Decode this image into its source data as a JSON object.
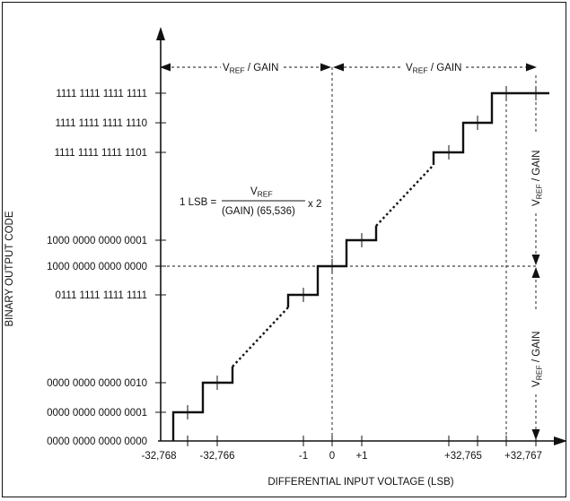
{
  "diagram": {
    "y_axis_title": "BINARY OUTPUT CODE",
    "x_axis_title": "DIFFERENTIAL INPUT VOLTAGE (LSB)",
    "y_codes": [
      "1111 1111 1111 1111",
      "1111 1111 1111 1110",
      "1111 1111 1111 1101",
      "1000 0000 0000 0001",
      "1000 0000 0000 0000",
      "0111 1111 1111 1111",
      "0000 0000 0000 0010",
      "0000 0000 0000 0001",
      "0000 0000 0000 0000"
    ],
    "x_ticks": [
      "-32,768",
      "-32,766",
      "-1",
      "0",
      "+1",
      "+32,765",
      "+32,767"
    ],
    "span_label_vref": "V",
    "span_label_sub": "REF",
    "span_label_rest": " / GAIN",
    "lsb_formula": {
      "lhs": "1 LSB =",
      "numerator": "V",
      "numerator_sub": "REF",
      "denominator": "(GAIN) (65,536)",
      "multiplier": "x 2"
    }
  }
}
